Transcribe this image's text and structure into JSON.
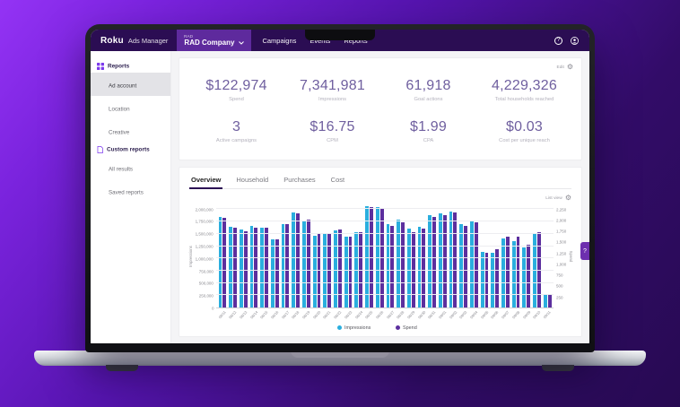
{
  "colors": {
    "nav_bg": "#2b0d53",
    "accent_purple": "#5e2a9d",
    "metric_value": "#6f5f9f",
    "bar_impressions": "#2aaede",
    "bar_spend": "#5c2f9e",
    "sidebar_icon": "#7c3aed"
  },
  "nav": {
    "brand": "Roku",
    "product": "Ads Manager",
    "account_caption": "RAD",
    "account_name": "RAD Company",
    "items": [
      "Campaigns",
      "Events",
      "Reports"
    ],
    "help_label": "?"
  },
  "sidebar": {
    "sections": [
      {
        "label": "Reports",
        "icon": "grid-icon",
        "items": [
          {
            "label": "Ad account",
            "selected": true
          },
          {
            "label": "Location",
            "selected": false
          },
          {
            "label": "Creative",
            "selected": false
          }
        ]
      },
      {
        "label": "Custom reports",
        "icon": "document-icon",
        "items": [
          {
            "label": "All results",
            "selected": false
          },
          {
            "label": "Saved reports",
            "selected": false
          }
        ]
      }
    ]
  },
  "metrics": {
    "action_label": "Edit",
    "rows": [
      [
        {
          "value": "$122,974",
          "label": "Spend"
        },
        {
          "value": "7,341,981",
          "label": "Impressions"
        },
        {
          "value": "61,918",
          "label": "Goal actions"
        },
        {
          "value": "4,229,326",
          "label": "Total households reached"
        }
      ],
      [
        {
          "value": "3",
          "label": "Active campaigns"
        },
        {
          "value": "$16.75",
          "label": "CPM"
        },
        {
          "value": "$1.99",
          "label": "CPA"
        },
        {
          "value": "$0.03",
          "label": "Cost per unique reach"
        }
      ]
    ]
  },
  "tabs": [
    {
      "label": "Overview",
      "active": true
    },
    {
      "label": "Household",
      "active": false
    },
    {
      "label": "Purchases",
      "active": false
    },
    {
      "label": "Cost",
      "active": false
    }
  ],
  "chart_header": {
    "action_label": "List view"
  },
  "feedback_tab_label": "?",
  "chart_data": {
    "type": "bar",
    "title": "",
    "x": [
      "08/11",
      "08/12",
      "08/13",
      "08/14",
      "08/15",
      "08/16",
      "08/17",
      "08/18",
      "08/19",
      "08/20",
      "08/21",
      "08/22",
      "08/23",
      "08/24",
      "08/25",
      "08/26",
      "08/27",
      "08/28",
      "08/29",
      "08/30",
      "08/31",
      "09/01",
      "09/02",
      "09/03",
      "09/04",
      "09/05",
      "09/06",
      "09/07",
      "09/08",
      "09/09",
      "09/10",
      "09/11"
    ],
    "series": [
      {
        "name": "Impressions",
        "color": "#2aaede",
        "values": [
          1840000,
          1650000,
          1590000,
          1670000,
          1620000,
          1380000,
          1690000,
          1930000,
          1780000,
          1460000,
          1490000,
          1570000,
          1440000,
          1530000,
          2060000,
          2040000,
          1690000,
          1790000,
          1600000,
          1650000,
          1880000,
          1910000,
          1950000,
          1690000,
          1760000,
          1130000,
          1120000,
          1400000,
          1350000,
          1230000,
          1520000,
          250000
        ]
      },
      {
        "name": "Spend",
        "color": "#5c2f9e",
        "values": [
          1830,
          1620,
          1550,
          1620,
          1620,
          1390,
          1700,
          1920,
          1790,
          1490,
          1500,
          1580,
          1450,
          1540,
          2050,
          2030,
          1660,
          1740,
          1540,
          1610,
          1850,
          1890,
          1930,
          1660,
          1730,
          1120,
          1180,
          1440,
          1440,
          1270,
          1540,
          250
        ]
      }
    ],
    "left_axis": {
      "label": "Impressions",
      "max": 2100000,
      "ticks": [
        "2,000,000",
        "1,750,000",
        "1,500,000",
        "1,250,000",
        "1,000,000",
        "750,000",
        "500,000",
        "250,000",
        "0"
      ]
    },
    "right_axis": {
      "label": "Spend",
      "ticks": [
        "2,250",
        "2,000",
        "1,750",
        "1,500",
        "1,250",
        "1,000",
        "750",
        "500",
        "250"
      ]
    },
    "legend_position": "bottom",
    "grid": true
  }
}
